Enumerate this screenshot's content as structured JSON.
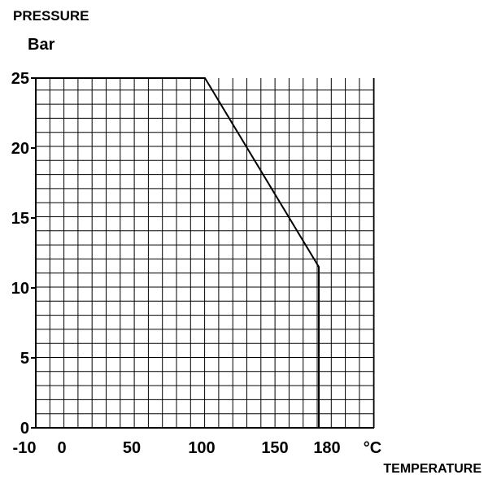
{
  "chart_data": {
    "type": "line",
    "ylabel": "PRESSURE",
    "yunit": "Bar",
    "xlabel": "TEMPERATURE",
    "xunit": "°C",
    "xlim": [
      -10,
      180
    ],
    "ylim": [
      0,
      25
    ],
    "grid": true,
    "x_ticks": [
      -10,
      0,
      50,
      100,
      150,
      180
    ],
    "y_ticks": [
      0,
      5,
      10,
      15,
      20,
      25
    ],
    "series": [
      {
        "x": [
          -10,
          100,
          180,
          180
        ],
        "y": [
          25,
          25,
          11.5,
          0
        ]
      }
    ],
    "colors": {
      "line": "#000000",
      "grid": "#000000",
      "background": "#ffffff"
    }
  }
}
